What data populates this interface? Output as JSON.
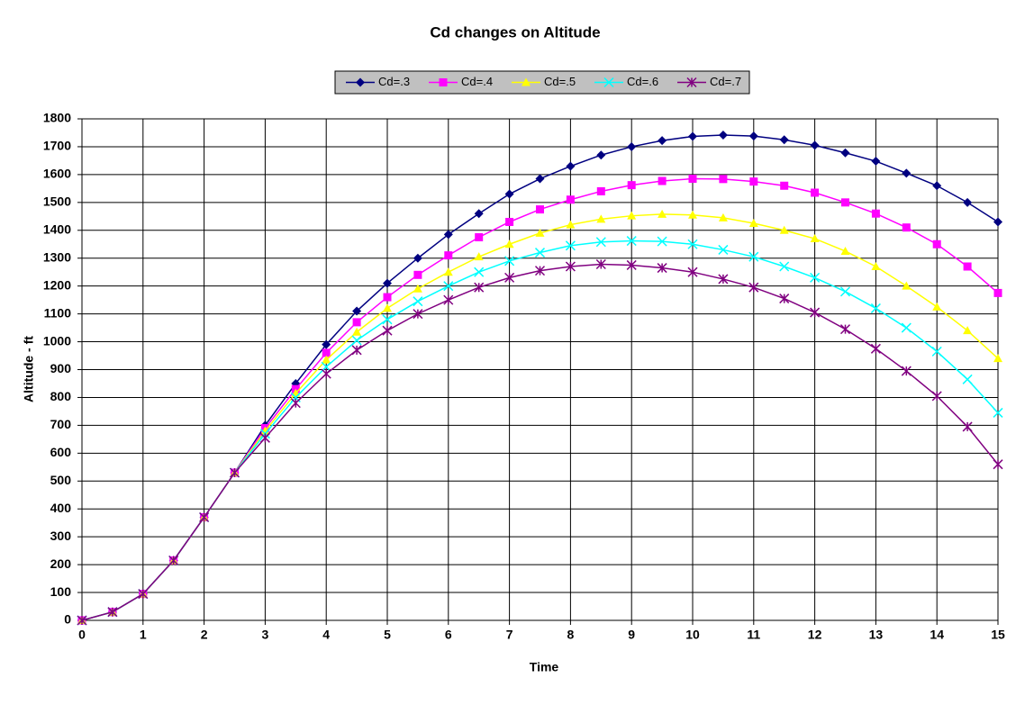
{
  "chart_data": {
    "type": "line",
    "title": "Cd changes on Altitude",
    "x_label": "Time",
    "y_label": "Altitude - ft",
    "x": [
      0,
      0.5,
      1,
      1.5,
      2,
      2.5,
      3,
      3.5,
      4,
      4.5,
      5,
      5.5,
      6,
      6.5,
      7,
      7.5,
      8,
      8.5,
      9,
      9.5,
      10,
      10.5,
      11,
      11.5,
      12,
      12.5,
      13,
      13.5,
      14,
      14.5,
      15
    ],
    "series": [
      {
        "name": "Cd=.3",
        "color": "#000080",
        "marker": "diamond",
        "values": [
          0,
          30,
          95,
          215,
          370,
          530,
          700,
          850,
          990,
          1110,
          1210,
          1300,
          1385,
          1460,
          1530,
          1585,
          1630,
          1670,
          1700,
          1722,
          1737,
          1742,
          1738,
          1725,
          1705,
          1678,
          1648,
          1605,
          1560,
          1500,
          1430
        ]
      },
      {
        "name": "Cd=.4",
        "color": "#ff00ff",
        "marker": "square",
        "values": [
          0,
          30,
          95,
          215,
          370,
          530,
          690,
          830,
          960,
          1070,
          1160,
          1240,
          1310,
          1375,
          1430,
          1475,
          1510,
          1540,
          1562,
          1577,
          1585,
          1584,
          1575,
          1560,
          1535,
          1500,
          1460,
          1410,
          1350,
          1270,
          1175
        ]
      },
      {
        "name": "Cd=.5",
        "color": "#ffff00",
        "marker": "triangle",
        "values": [
          0,
          30,
          95,
          215,
          370,
          530,
          680,
          815,
          935,
          1035,
          1120,
          1190,
          1250,
          1305,
          1350,
          1390,
          1420,
          1440,
          1452,
          1458,
          1455,
          1445,
          1425,
          1400,
          1370,
          1325,
          1270,
          1200,
          1125,
          1040,
          940
        ]
      },
      {
        "name": "Cd=.6",
        "color": "#00ffff",
        "marker": "x",
        "values": [
          0,
          30,
          95,
          215,
          370,
          530,
          670,
          800,
          910,
          1005,
          1080,
          1145,
          1200,
          1250,
          1290,
          1320,
          1345,
          1358,
          1362,
          1360,
          1350,
          1330,
          1305,
          1270,
          1230,
          1180,
          1120,
          1050,
          965,
          865,
          745
        ]
      },
      {
        "name": "Cd=.7",
        "color": "#800080",
        "marker": "star",
        "values": [
          0,
          30,
          95,
          215,
          370,
          530,
          655,
          780,
          885,
          970,
          1040,
          1100,
          1150,
          1195,
          1230,
          1255,
          1270,
          1278,
          1275,
          1265,
          1250,
          1225,
          1195,
          1155,
          1105,
          1045,
          975,
          895,
          805,
          695,
          560
        ]
      }
    ],
    "xlim": [
      0,
      15
    ],
    "xticks": [
      0,
      1,
      2,
      3,
      4,
      5,
      6,
      7,
      8,
      9,
      10,
      11,
      12,
      13,
      14,
      15
    ],
    "ylim": [
      0,
      1800
    ],
    "yticks": [
      0,
      100,
      200,
      300,
      400,
      500,
      600,
      700,
      800,
      900,
      1000,
      1100,
      1200,
      1300,
      1400,
      1500,
      1600,
      1700,
      1800
    ],
    "grid": true,
    "legend": "top"
  }
}
